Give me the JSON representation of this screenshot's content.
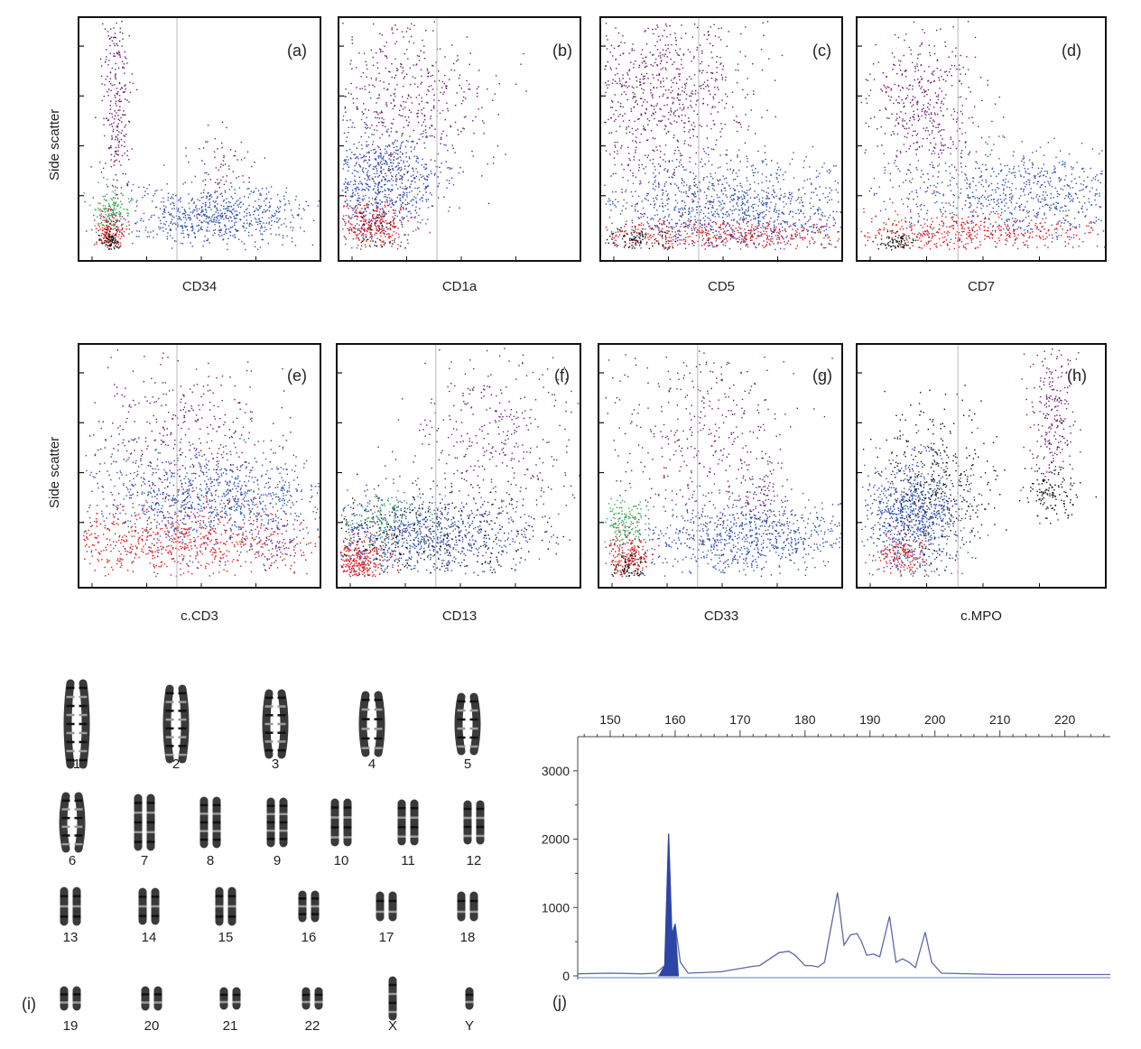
{
  "flow": {
    "ylabel": "Side scatter",
    "panels": [
      {
        "id": "(a)",
        "marker": "CD34"
      },
      {
        "id": "(b)",
        "marker": "CD1a"
      },
      {
        "id": "(c)",
        "marker": "CD5"
      },
      {
        "id": "(d)",
        "marker": "CD7"
      },
      {
        "id": "(e)",
        "marker": "c.CD3"
      },
      {
        "id": "(f)",
        "marker": "CD13"
      },
      {
        "id": "(g)",
        "marker": "CD33"
      },
      {
        "id": "(h)",
        "marker": "c.MPO"
      }
    ],
    "population_colors": {
      "blue": "#2f4fb0",
      "purple": "#6a1a6e",
      "red": "#e3171b",
      "green": "#2fa84a",
      "black": "#111111"
    }
  },
  "karyotype": {
    "label": "(i)",
    "chromosomes": [
      "1",
      "2",
      "3",
      "4",
      "5",
      "6",
      "7",
      "8",
      "9",
      "10",
      "11",
      "12",
      "13",
      "14",
      "15",
      "16",
      "17",
      "18",
      "19",
      "20",
      "21",
      "22",
      "X",
      "Y"
    ]
  },
  "fragment": {
    "label": "(j)",
    "x_ticks": [
      "150",
      "160",
      "170",
      "180",
      "190",
      "200",
      "210",
      "220"
    ],
    "y_ticks": [
      "3000",
      "2000",
      "1000",
      "0"
    ]
  },
  "chart_data": {
    "type": "line",
    "xlim": [
      145,
      227
    ],
    "ylim": [
      0,
      3500
    ],
    "series": [
      {
        "values": [
          [
            145,
            30
          ],
          [
            150,
            40
          ],
          [
            155,
            30
          ],
          [
            157,
            40
          ],
          [
            158.4,
            150
          ],
          [
            159,
            2080
          ],
          [
            159.5,
            600
          ],
          [
            160,
            760
          ],
          [
            160.8,
            200
          ],
          [
            162,
            40
          ],
          [
            167,
            60
          ],
          [
            172,
            140
          ],
          [
            173,
            150
          ],
          [
            176,
            340
          ],
          [
            177.5,
            360
          ],
          [
            178.5,
            300
          ],
          [
            180,
            150
          ],
          [
            181,
            150
          ],
          [
            182,
            130
          ],
          [
            183,
            200
          ],
          [
            185,
            1220
          ],
          [
            186,
            450
          ],
          [
            187,
            600
          ],
          [
            188,
            620
          ],
          [
            188.7,
            500
          ],
          [
            189.5,
            300
          ],
          [
            190.5,
            320
          ],
          [
            191.5,
            280
          ],
          [
            193,
            870
          ],
          [
            194,
            200
          ],
          [
            195,
            250
          ],
          [
            196,
            200
          ],
          [
            197,
            120
          ],
          [
            198.5,
            640
          ],
          [
            199.5,
            200
          ],
          [
            201,
            40
          ],
          [
            210,
            20
          ],
          [
            227,
            20
          ]
        ]
      }
    ]
  }
}
